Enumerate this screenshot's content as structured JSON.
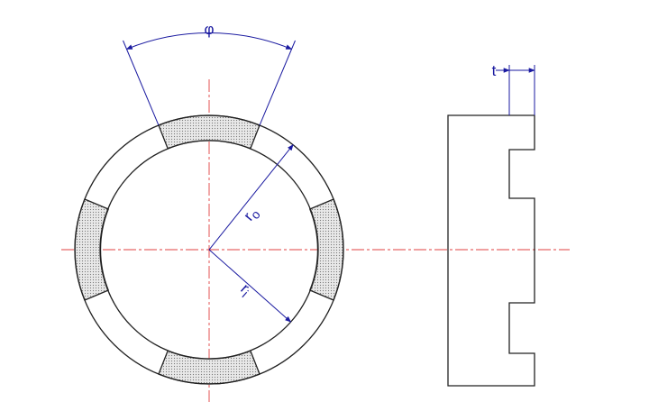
{
  "labels": {
    "phi": "φ",
    "t": "t",
    "r_outer_base": "r",
    "r_outer_sub": "o",
    "r_inner_base": "r",
    "r_inner_sub": "i"
  },
  "colors": {
    "outline": "#222222",
    "dimension": "#1a1aa0",
    "centerline": "#e04040",
    "hatch": "#777777",
    "hatch_bg": "#e8e8e8"
  }
}
